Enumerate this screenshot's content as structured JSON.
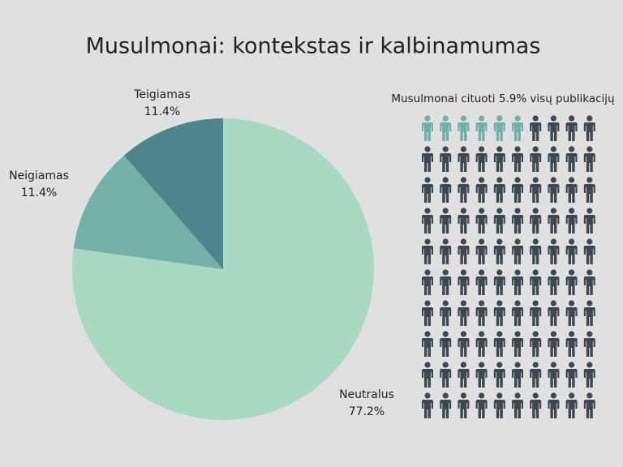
{
  "chart_data": [
    {
      "type": "pie",
      "title": "Musulmonai: kontekstas ir kalbinamumas",
      "categories": [
        "Neutralus",
        "Neigiamas",
        "Teigiamas"
      ],
      "values": [
        77.2,
        11.4,
        11.4
      ],
      "value_labels": [
        "77.2%",
        "11.4%",
        "11.4%"
      ],
      "colors": [
        "#a8d9c3",
        "#75b1a9",
        "#4e858d"
      ]
    },
    {
      "type": "pictograph",
      "title": "Musulmonai cituoti 5.9% visų publikacijų",
      "value": 5.9,
      "color": "#6fb1a7",
      "rest_color": "#3e4850"
    }
  ]
}
